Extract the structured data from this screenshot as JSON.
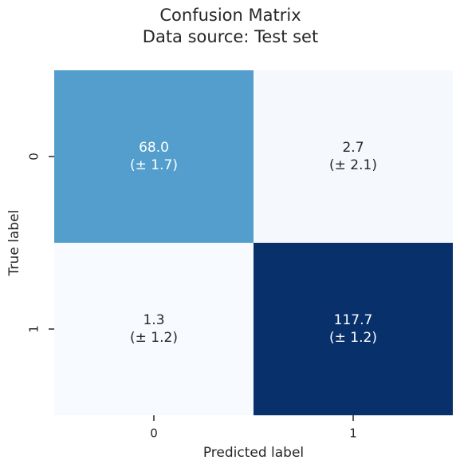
{
  "chart_data": {
    "type": "heatmap",
    "title": "Confusion Matrix",
    "subtitle": "Data source: Test set",
    "x_label": "Predicted label",
    "y_label": "True label",
    "x_categories": [
      "0",
      "1"
    ],
    "y_categories": [
      "0",
      "1"
    ],
    "values": [
      [
        68.0,
        2.7
      ],
      [
        1.3,
        117.7
      ]
    ],
    "value_labels": [
      [
        "68.0",
        "2.7"
      ],
      [
        "1.3",
        "117.7"
      ]
    ],
    "errors": [
      [
        1.7,
        2.1
      ],
      [
        1.2,
        1.2
      ]
    ],
    "error_labels": [
      [
        "(± 1.7)",
        "(± 2.1)"
      ],
      [
        "(± 1.2)",
        "(± 1.2)"
      ]
    ],
    "colormap": [
      "#f7fbff",
      "#deebf7",
      "#c6dbef",
      "#9ecae1",
      "#6baed6",
      "#4292c6",
      "#2171b5",
      "#08519c",
      "#08306b"
    ]
  }
}
